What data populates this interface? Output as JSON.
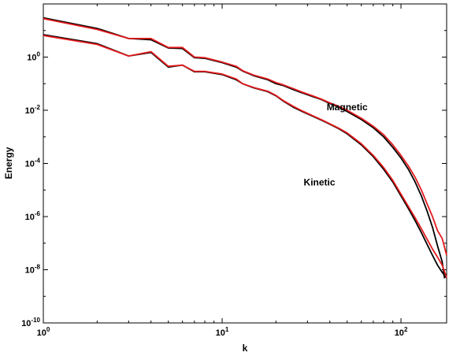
{
  "chart_data": {
    "type": "line",
    "xscale": "log",
    "yscale": "log",
    "xlim": [
      1,
      180
    ],
    "ylim": [
      1e-10,
      100
    ],
    "xlabel": "k",
    "ylabel": "Energy",
    "grid": false,
    "xticks": [
      {
        "value": 1,
        "base": "10",
        "exp": "0"
      },
      {
        "value": 10,
        "base": "10",
        "exp": "1"
      },
      {
        "value": 100,
        "base": "10",
        "exp": "2"
      }
    ],
    "yticks": [
      {
        "value": 1e-10,
        "base": "10",
        "exp": "-10"
      },
      {
        "value": 1e-08,
        "base": "10",
        "exp": "-8"
      },
      {
        "value": 1e-06,
        "base": "10",
        "exp": "-6"
      },
      {
        "value": 0.0001,
        "base": "10",
        "exp": "-4"
      },
      {
        "value": 0.01,
        "base": "10",
        "exp": "-2"
      },
      {
        "value": 1,
        "base": "10",
        "exp": "0"
      }
    ],
    "annotations": [
      {
        "text": "Magnetic",
        "x": 50,
        "y": 0.01
      },
      {
        "text": "Kinetic",
        "x": 35,
        "y": 1.5e-05
      }
    ],
    "series": [
      {
        "color": "#000000",
        "points": [
          [
            1,
            30
          ],
          [
            2,
            12
          ],
          [
            3,
            5
          ],
          [
            4,
            4.5
          ],
          [
            5,
            2.2
          ],
          [
            6,
            2.1
          ],
          [
            7,
            0.95
          ],
          [
            8,
            0.9
          ],
          [
            10,
            0.62
          ],
          [
            12,
            0.42
          ],
          [
            13,
            0.3
          ],
          [
            15,
            0.2
          ],
          [
            18,
            0.14
          ],
          [
            20,
            0.1
          ],
          [
            22,
            0.085
          ],
          [
            25,
            0.06
          ],
          [
            28,
            0.045
          ],
          [
            32,
            0.033
          ],
          [
            36,
            0.025
          ],
          [
            40,
            0.018
          ],
          [
            45,
            0.013
          ],
          [
            50,
            0.009
          ],
          [
            60,
            0.0045
          ],
          [
            70,
            0.0022
          ],
          [
            80,
            0.001
          ],
          [
            90,
            0.0004
          ],
          [
            100,
            0.00016
          ],
          [
            110,
            6e-05
          ],
          [
            120,
            2e-05
          ],
          [
            130,
            6e-06
          ],
          [
            140,
            1.6e-06
          ],
          [
            150,
            4e-07
          ],
          [
            160,
            8e-08
          ],
          [
            170,
            2e-08
          ],
          [
            175,
            5e-09
          ],
          [
            180,
            7e-09
          ]
        ]
      },
      {
        "color": "#e31a1c",
        "points": [
          [
            1,
            28
          ],
          [
            2,
            11
          ],
          [
            3,
            5
          ],
          [
            4,
            5
          ],
          [
            5,
            2.3
          ],
          [
            6,
            2.3
          ],
          [
            7,
            1.0
          ],
          [
            8,
            0.95
          ],
          [
            10,
            0.65
          ],
          [
            12,
            0.45
          ],
          [
            13,
            0.31
          ],
          [
            15,
            0.21
          ],
          [
            18,
            0.15
          ],
          [
            20,
            0.11
          ],
          [
            22,
            0.09
          ],
          [
            25,
            0.065
          ],
          [
            28,
            0.048
          ],
          [
            32,
            0.035
          ],
          [
            36,
            0.026
          ],
          [
            40,
            0.019
          ],
          [
            45,
            0.014
          ],
          [
            50,
            0.01
          ],
          [
            60,
            0.005
          ],
          [
            70,
            0.0025
          ],
          [
            80,
            0.0012
          ],
          [
            90,
            0.0005
          ],
          [
            100,
            0.0002
          ],
          [
            110,
            8e-05
          ],
          [
            120,
            3e-05
          ],
          [
            130,
            1e-05
          ],
          [
            140,
            3e-06
          ],
          [
            150,
            1e-06
          ],
          [
            160,
            3e-07
          ],
          [
            170,
            1.5e-07
          ],
          [
            180,
            3.5e-08
          ]
        ]
      },
      {
        "color": "#000000",
        "points": [
          [
            1,
            7
          ],
          [
            2,
            3.2
          ],
          [
            3,
            1.1
          ],
          [
            4,
            1.5
          ],
          [
            5,
            0.42
          ],
          [
            6,
            0.5
          ],
          [
            7,
            0.28
          ],
          [
            8,
            0.28
          ],
          [
            10,
            0.22
          ],
          [
            12,
            0.14
          ],
          [
            13,
            0.1
          ],
          [
            15,
            0.07
          ],
          [
            18,
            0.05
          ],
          [
            20,
            0.035
          ],
          [
            22,
            0.022
          ],
          [
            25,
            0.013
          ],
          [
            28,
            0.009
          ],
          [
            32,
            0.006
          ],
          [
            36,
            0.0042
          ],
          [
            40,
            0.003
          ],
          [
            45,
            0.002
          ],
          [
            50,
            0.0013
          ],
          [
            60,
            0.0005
          ],
          [
            70,
            0.00018
          ],
          [
            80,
            6e-05
          ],
          [
            90,
            2e-05
          ],
          [
            100,
            6e-06
          ],
          [
            110,
            2e-06
          ],
          [
            120,
            7e-07
          ],
          [
            130,
            2.5e-07
          ],
          [
            140,
            9e-08
          ],
          [
            150,
            3.5e-08
          ],
          [
            160,
            1.5e-08
          ],
          [
            170,
            8e-09
          ],
          [
            180,
            5e-09
          ]
        ]
      },
      {
        "color": "#e31a1c",
        "points": [
          [
            1,
            6.5
          ],
          [
            2,
            3.0
          ],
          [
            3,
            1.1
          ],
          [
            4,
            1.6
          ],
          [
            5,
            0.45
          ],
          [
            6,
            0.5
          ],
          [
            7,
            0.29
          ],
          [
            8,
            0.29
          ],
          [
            10,
            0.23
          ],
          [
            12,
            0.15
          ],
          [
            13,
            0.1
          ],
          [
            15,
            0.072
          ],
          [
            18,
            0.052
          ],
          [
            20,
            0.036
          ],
          [
            22,
            0.023
          ],
          [
            25,
            0.014
          ],
          [
            28,
            0.0095
          ],
          [
            32,
            0.0063
          ],
          [
            36,
            0.0044
          ],
          [
            40,
            0.0031
          ],
          [
            45,
            0.0021
          ],
          [
            50,
            0.0014
          ],
          [
            60,
            0.00055
          ],
          [
            70,
            0.0002
          ],
          [
            80,
            7e-05
          ],
          [
            90,
            2.3e-05
          ],
          [
            100,
            7e-06
          ],
          [
            110,
            2.4e-06
          ],
          [
            120,
            9e-07
          ],
          [
            130,
            3.5e-07
          ],
          [
            140,
            1.4e-07
          ],
          [
            150,
            6e-08
          ],
          [
            160,
            3e-08
          ],
          [
            170,
            1.5e-08
          ],
          [
            180,
            5e-09
          ]
        ]
      }
    ]
  }
}
